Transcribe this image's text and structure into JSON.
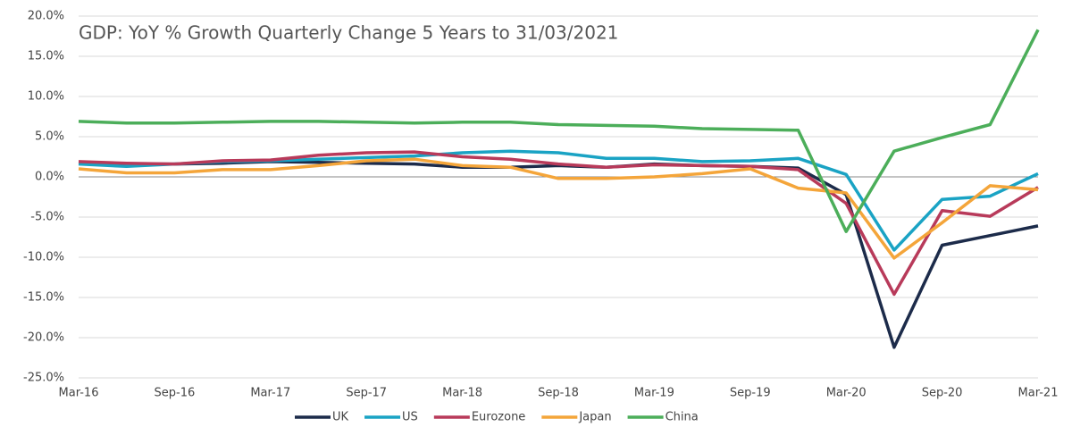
{
  "chart_data": {
    "type": "line",
    "title": "GDP: YoY % Growth Quarterly Change 5 Years to 31/03/2021",
    "categories": [
      "Mar-16",
      null,
      "Sep-16",
      null,
      "Mar-17",
      null,
      "Sep-17",
      null,
      "Mar-18",
      null,
      "Sep-18",
      null,
      "Mar-19",
      null,
      "Sep-19",
      null,
      "Mar-20",
      null,
      "Sep-20",
      null,
      "Mar-21"
    ],
    "series": [
      {
        "name": "UK",
        "color": "#1c2b4a",
        "values": [
          1.8,
          1.6,
          1.6,
          1.7,
          1.9,
          1.8,
          1.7,
          1.6,
          1.2,
          1.2,
          1.4,
          1.2,
          1.6,
          1.4,
          1.3,
          1.1,
          -2.2,
          -21.2,
          -8.5,
          -7.3,
          -6.1
        ]
      },
      {
        "name": "US",
        "color": "#1aa3c4",
        "values": [
          1.6,
          1.3,
          1.6,
          1.9,
          2.0,
          2.2,
          2.4,
          2.6,
          3.0,
          3.2,
          3.0,
          2.3,
          2.3,
          1.9,
          2.0,
          2.3,
          0.3,
          -9.1,
          -2.8,
          -2.4,
          0.4
        ]
      },
      {
        "name": "Eurozone",
        "color": "#b83a5a",
        "values": [
          1.9,
          1.7,
          1.6,
          2.0,
          2.1,
          2.7,
          3.0,
          3.1,
          2.5,
          2.2,
          1.6,
          1.2,
          1.5,
          1.4,
          1.3,
          0.9,
          -3.3,
          -14.6,
          -4.2,
          -4.9,
          -1.3
        ]
      },
      {
        "name": "Japan",
        "color": "#f4a53a",
        "values": [
          1.0,
          0.5,
          0.5,
          0.9,
          0.9,
          1.4,
          2.0,
          2.2,
          1.4,
          1.2,
          -0.2,
          -0.2,
          0.0,
          0.4,
          1.0,
          -1.4,
          -2.0,
          -10.1,
          -5.7,
          -1.1,
          -1.6
        ]
      },
      {
        "name": "China",
        "color": "#4cae5a",
        "values": [
          6.9,
          6.7,
          6.7,
          6.8,
          6.9,
          6.9,
          6.8,
          6.7,
          6.8,
          6.8,
          6.5,
          6.4,
          6.3,
          6.0,
          5.9,
          5.8,
          -6.8,
          3.2,
          4.9,
          6.5,
          18.3
        ]
      }
    ],
    "ylim": [
      -25,
      20
    ],
    "yticks": [
      {
        "value": -25,
        "label": "-25.0%"
      },
      {
        "value": -20,
        "label": "-20.0%"
      },
      {
        "value": -15,
        "label": "-15.0%"
      },
      {
        "value": -10,
        "label": "-10.0%"
      },
      {
        "value": -5,
        "label": "-5.0%"
      },
      {
        "value": 0,
        "label": "0.0%"
      },
      {
        "value": 5,
        "label": "5.0%"
      },
      {
        "value": 10,
        "label": "10.0%"
      },
      {
        "value": 15,
        "label": "15.0%"
      },
      {
        "value": 20,
        "label": "20.0%"
      }
    ],
    "grid": true,
    "legend": "bottom"
  }
}
